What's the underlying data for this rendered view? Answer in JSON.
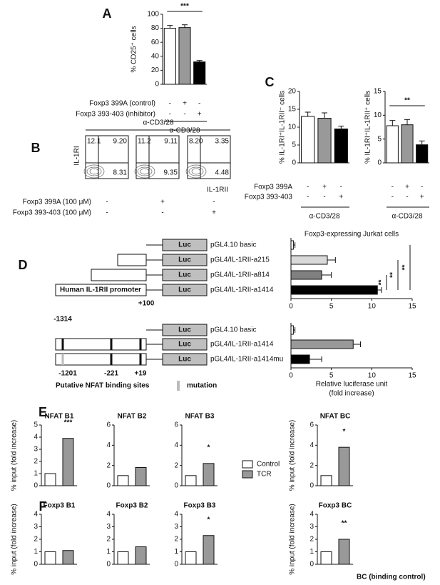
{
  "panel_labels": [
    "A",
    "B",
    "C",
    "D",
    "E",
    "F"
  ],
  "flow": {
    "header": "α-CD3/28",
    "y_label": "IL-1RI",
    "x_label": "IL-1RII",
    "plots": [
      {
        "quadrants": [
          "12.1",
          "9.20",
          "8.31"
        ]
      },
      {
        "quadrants": [
          "11.2",
          "9.11",
          "9.35"
        ]
      },
      {
        "quadrants": [
          "8.20",
          "3.35",
          "4.48"
        ]
      }
    ],
    "treatments": [
      {
        "label": "Foxp3 399A (100 μM)",
        "signs": [
          "-",
          "+",
          "-"
        ]
      },
      {
        "label": "Foxp3 393-403 (100 μM)",
        "signs": [
          "-",
          "-",
          "+"
        ]
      }
    ]
  },
  "promoter": {
    "luc": "Luc",
    "box_label": "Human IL-1RII promoter",
    "plus100": "+100",
    "minus1314": "-1314",
    "sites": [
      "-1201",
      "-221",
      "+19"
    ],
    "sites_label": "Putative NFAT binding sites",
    "mutation_label": "mutation"
  },
  "legend": [
    {
      "name": "Control",
      "color": "#ffffff"
    },
    {
      "name": "TCR",
      "color": "#999999"
    }
  ],
  "note": "BC (binding control)",
  "chart_data": [
    {
      "type": "bar",
      "y_label": "% CD25⁺ cells",
      "categories": [
        null,
        null,
        null
      ],
      "values": [
        80,
        81,
        32
      ],
      "errors": [
        4,
        4,
        2
      ],
      "colors": [
        "#ffffff",
        "#999999",
        "#000000"
      ],
      "ylim": [
        0,
        100
      ],
      "yticks": [
        0,
        20,
        40,
        60,
        80,
        100
      ],
      "annotation": "***",
      "sign_rows": [
        {
          "label": "Foxp3 399A (control)",
          "signs": [
            "-",
            "+",
            "-"
          ]
        },
        {
          "label": "Foxp3 393-403 (inhibitor)",
          "signs": [
            "-",
            "-",
            "+"
          ]
        }
      ],
      "group_label": "α-CD3/28"
    },
    {
      "type": "bar",
      "y_label": "% IL-1RI⁺IL-1RII⁻ cells",
      "categories": [
        null,
        null,
        null
      ],
      "values": [
        13,
        12.5,
        9.5
      ],
      "errors": [
        1.2,
        1.5,
        0.8
      ],
      "colors": [
        "#ffffff",
        "#999999",
        "#000000"
      ],
      "ylim": [
        0,
        20
      ],
      "yticks": [
        0,
        5,
        10,
        15,
        20
      ],
      "sign_rows": [
        {
          "label": "Foxp3 399A",
          "signs": [
            "-",
            "+",
            "-"
          ]
        },
        {
          "label": "Foxp3 393-403",
          "signs": [
            "-",
            "-",
            "+"
          ]
        }
      ],
      "group_label": "α-CD3/28"
    },
    {
      "type": "bar",
      "y_label": "% IL-1RI⁺IL-1RII⁺ cells",
      "categories": [
        null,
        null,
        null
      ],
      "values": [
        7.8,
        8,
        3.8
      ],
      "errors": [
        1.1,
        1.1,
        0.8
      ],
      "colors": [
        "#ffffff",
        "#999999",
        "#000000"
      ],
      "ylim": [
        0,
        15
      ],
      "yticks": [
        0,
        5,
        10,
        15
      ],
      "annotation": "**",
      "sign_rows": [
        {
          "signs": [
            "-",
            "+",
            "-"
          ]
        },
        {
          "signs": [
            "-",
            "-",
            "+"
          ]
        }
      ],
      "group_label": "α-CD3/28"
    },
    {
      "type": "barh",
      "title": "Foxp3-expressing Jurkat cells",
      "categories": [
        "pGL4.10 basic",
        "pGL4/IL-1RII-a215",
        "pGL4/IL-1RII-a814",
        "pGL4/IL-1RII-a1414"
      ],
      "values": [
        0.3,
        4.5,
        3.8,
        10.7
      ],
      "errors": [
        0.2,
        1,
        1.2,
        0.5
      ],
      "colors": [
        "#ffffff",
        "#d9d9d9",
        "#808080",
        "#000000"
      ],
      "xlim": [
        0,
        15
      ],
      "xticks": [
        0,
        5,
        10,
        15
      ],
      "annotations": [
        "**",
        "**",
        "**"
      ]
    },
    {
      "type": "barh",
      "categories": [
        "pGL4.10 basic",
        "pGL4/IL-1RII-a1414",
        "pGL4/IL-1RII-a1414mu"
      ],
      "values": [
        0.3,
        7.7,
        2.3
      ],
      "errors": [
        0.2,
        0.9,
        1.5
      ],
      "colors": [
        "#ffffff",
        "#999999",
        "#000000"
      ],
      "xlim": [
        0,
        15
      ],
      "xticks": [
        0,
        5,
        10,
        15
      ],
      "x_label": [
        "Relative luciferase unit",
        "(fold increase)"
      ]
    },
    {
      "type": "bar",
      "title": "NFAT B1",
      "y_label": "% input (fold increase)",
      "categories": [
        null,
        null
      ],
      "values": [
        1,
        3.9
      ],
      "colors": [
        "#ffffff",
        "#999999"
      ],
      "ylim": [
        0,
        5
      ],
      "yticks": [
        0,
        1,
        2,
        3,
        4,
        5
      ],
      "annotation": "***"
    },
    {
      "type": "bar",
      "title": "NFAT B2",
      "categories": [
        null,
        null
      ],
      "values": [
        1,
        1.8
      ],
      "colors": [
        "#ffffff",
        "#999999"
      ],
      "ylim": [
        0,
        6
      ],
      "yticks": [
        0,
        2,
        4,
        6
      ]
    },
    {
      "type": "bar",
      "title": "NFAT B3",
      "categories": [
        null,
        null
      ],
      "values": [
        1,
        2.2
      ],
      "colors": [
        "#ffffff",
        "#999999"
      ],
      "ylim": [
        0,
        6
      ],
      "yticks": [
        0,
        2,
        4,
        6
      ],
      "annotation": "*"
    },
    {
      "type": "bar",
      "title": "NFAT BC",
      "y_label": "% input (fold increase)",
      "categories": [
        null,
        null
      ],
      "values": [
        1,
        3.8
      ],
      "colors": [
        "#ffffff",
        "#999999"
      ],
      "ylim": [
        0,
        6
      ],
      "yticks": [
        0,
        2,
        4,
        6
      ],
      "annotation": "*"
    },
    {
      "type": "bar",
      "title": "Foxp3 B1",
      "y_label": "% input (fold increase)",
      "categories": [
        null,
        null
      ],
      "values": [
        1,
        1.1
      ],
      "colors": [
        "#ffffff",
        "#999999"
      ],
      "ylim": [
        0,
        4
      ],
      "yticks": [
        0,
        1,
        2,
        3,
        4
      ]
    },
    {
      "type": "bar",
      "title": "Foxp3 B2",
      "categories": [
        null,
        null
      ],
      "values": [
        1,
        1.4
      ],
      "colors": [
        "#ffffff",
        "#999999"
      ],
      "ylim": [
        0,
        4
      ],
      "yticks": [
        0,
        1,
        2,
        3,
        4
      ]
    },
    {
      "type": "bar",
      "title": "Foxp3 B3",
      "categories": [
        null,
        null
      ],
      "values": [
        1,
        2.3
      ],
      "colors": [
        "#ffffff",
        "#999999"
      ],
      "ylim": [
        0,
        4
      ],
      "yticks": [
        0,
        1,
        2,
        3,
        4
      ],
      "annotation": "*"
    },
    {
      "type": "bar",
      "title": "Foxp3 BC",
      "y_label": "% input (fold increase)",
      "categories": [
        null,
        null
      ],
      "values": [
        1,
        2
      ],
      "colors": [
        "#ffffff",
        "#999999"
      ],
      "ylim": [
        0,
        4
      ],
      "yticks": [
        0,
        1,
        2,
        3,
        4
      ],
      "annotation": "**"
    }
  ]
}
